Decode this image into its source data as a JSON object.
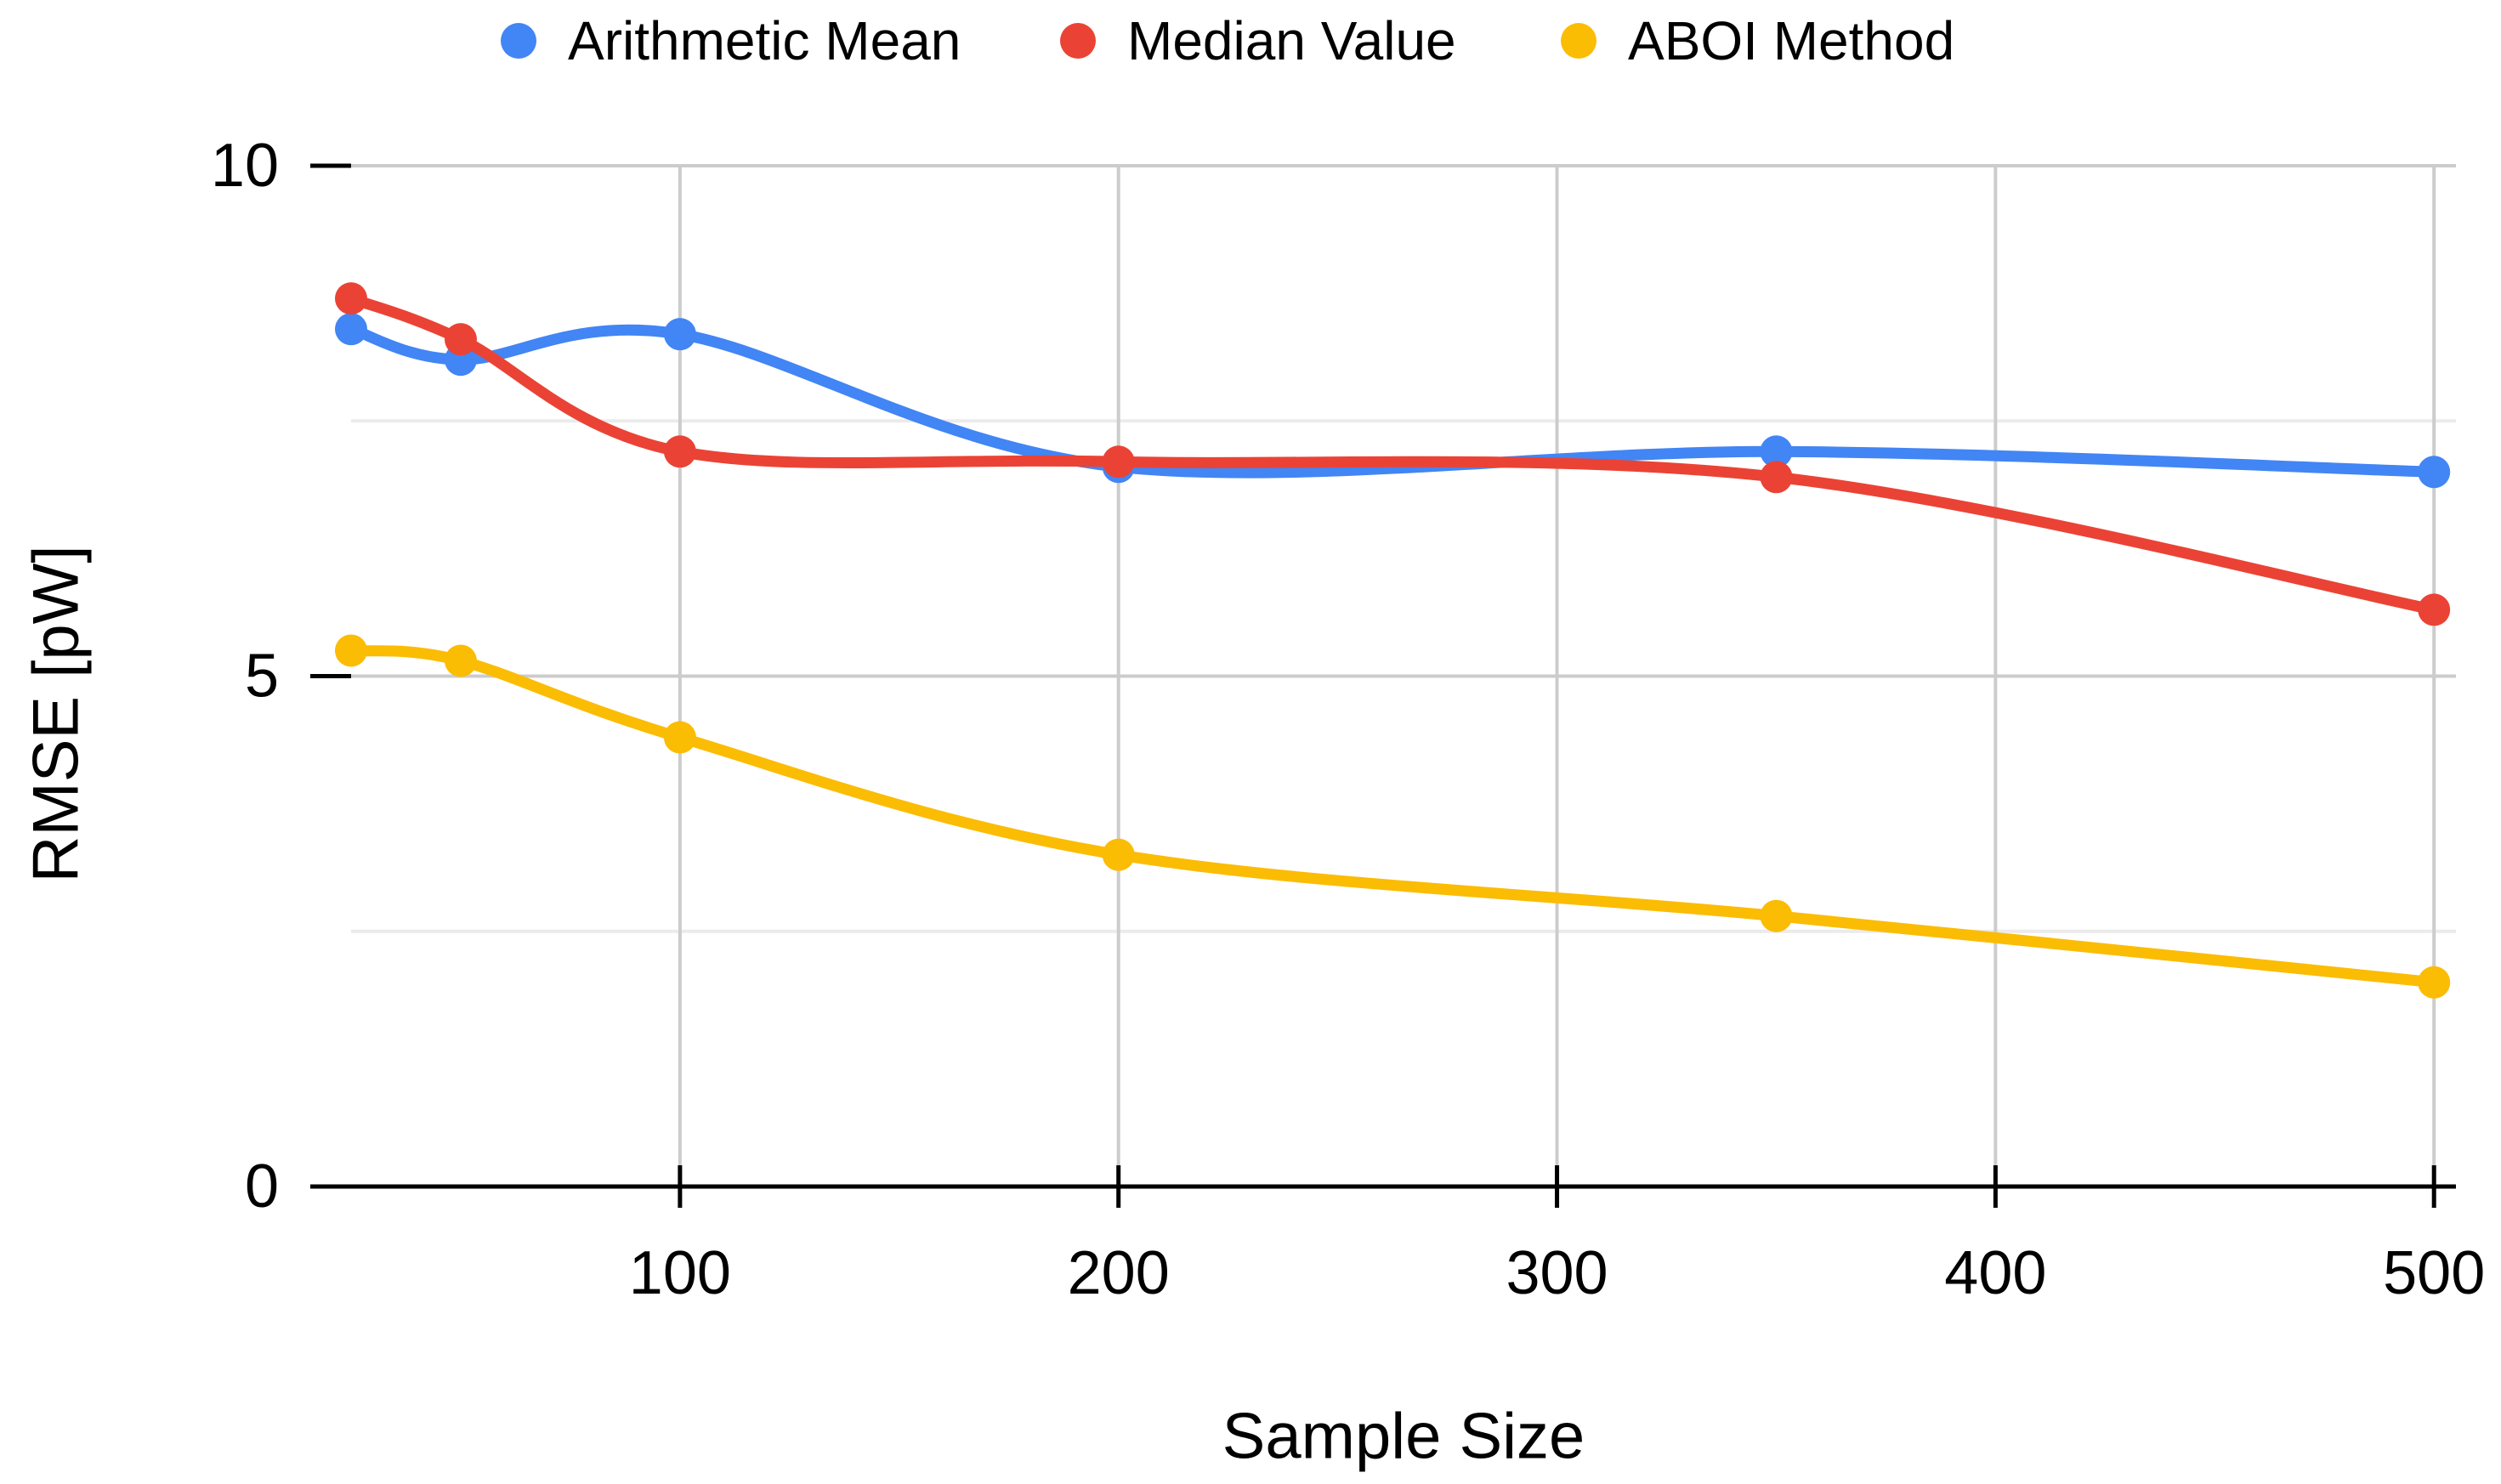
{
  "chart_data": {
    "type": "line",
    "smooth": true,
    "title": "",
    "xlabel": "Sample Size",
    "ylabel": "RMSE [pW]",
    "x": [
      25,
      50,
      100,
      200,
      350,
      500
    ],
    "series": [
      {
        "name": "Arithmetic Mean",
        "color": "#4285F4",
        "values": [
          8.4,
          8.1,
          8.35,
          7.05,
          7.2,
          7.0
        ]
      },
      {
        "name": "Median Value",
        "color": "#EA4335",
        "values": [
          8.7,
          8.3,
          7.2,
          7.1,
          6.95,
          5.65
        ]
      },
      {
        "name": "ABOI Method",
        "color": "#FBBC04",
        "values": [
          5.25,
          5.15,
          4.4,
          3.25,
          2.65,
          2.0
        ]
      }
    ],
    "xlim": [
      25,
      505
    ],
    "ylim": [
      0,
      10
    ],
    "x_ticks": [
      100,
      200,
      300,
      400,
      500
    ],
    "y_ticks": [
      0,
      5,
      10
    ],
    "y_minor_gridlines": [
      2.5,
      7.5
    ],
    "legend_position": "top",
    "grid": true,
    "colors": {
      "major_grid": "#CCCCCC",
      "minor_grid": "#EBEBEB",
      "axis_line": "#000000",
      "text": "#000000",
      "background": "#FFFFFF"
    }
  }
}
